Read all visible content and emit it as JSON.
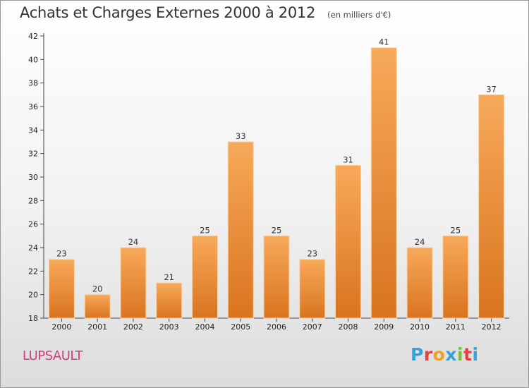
{
  "header": {
    "title": "Achats et Charges Externes 2000 à 2012",
    "unit": "(en milliers d'€)"
  },
  "footer": {
    "commune": "LUPSAULT",
    "logo_text": "Proxiti",
    "logo_colors": [
      "#3aa0d8",
      "#e8403a",
      "#f0a020",
      "#3aa0d8",
      "#78c040",
      "#e8403a",
      "#3aa0d8"
    ]
  },
  "colors": {
    "bar_top": "#f7a95a",
    "bar_bottom": "#d9741f",
    "bar_edge": "#fbd3a8",
    "axis": "#444444",
    "grid": "#cfcfcf"
  },
  "chart_data": {
    "type": "bar",
    "title": "Achats et Charges Externes 2000 à 2012",
    "subtitle": "(en milliers d'€)",
    "categories": [
      "2000",
      "2001",
      "2002",
      "2003",
      "2004",
      "2005",
      "2006",
      "2007",
      "2008",
      "2009",
      "2010",
      "2011",
      "2012"
    ],
    "values": [
      23,
      20,
      24,
      21,
      25,
      33,
      25,
      23,
      31,
      41,
      24,
      25,
      37
    ],
    "ylim": [
      18,
      42
    ],
    "yticks": [
      18,
      20,
      22,
      24,
      26,
      28,
      30,
      32,
      34,
      36,
      38,
      40,
      42
    ],
    "grid": false,
    "legend": "none"
  }
}
